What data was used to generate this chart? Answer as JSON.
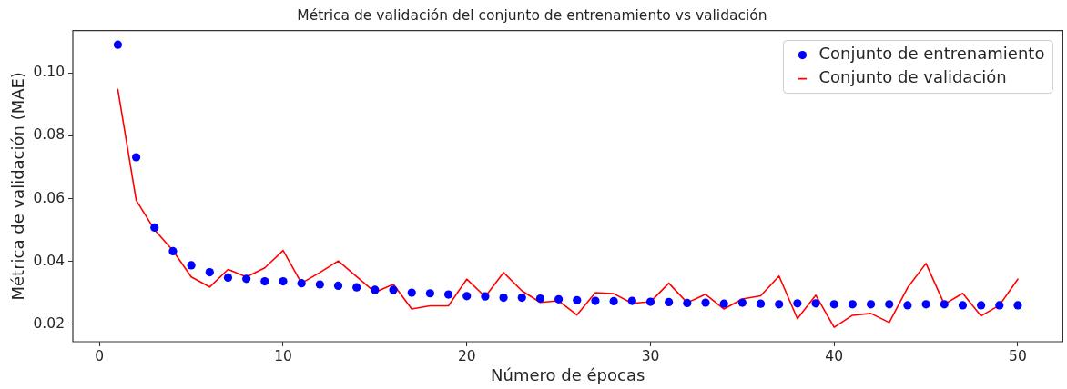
{
  "chart_data": {
    "type": "line",
    "title": "Métrica de validación del conjunto de entrenamiento vs validación",
    "xlabel": "Número de épocas",
    "ylabel": "Métrica de validación (MAE)",
    "x": [
      1,
      2,
      3,
      4,
      5,
      6,
      7,
      8,
      9,
      10,
      11,
      12,
      13,
      14,
      15,
      16,
      17,
      18,
      19,
      20,
      21,
      22,
      23,
      24,
      25,
      26,
      27,
      28,
      29,
      30,
      31,
      32,
      33,
      34,
      35,
      36,
      37,
      38,
      39,
      40,
      41,
      42,
      43,
      44,
      45,
      46,
      47,
      48,
      49,
      50
    ],
    "series": [
      {
        "name": "Conjunto de entrenamiento",
        "type": "scatter",
        "marker": "circle",
        "color": "#0000ff",
        "values": [
          0.109,
          0.0732,
          0.0508,
          0.0433,
          0.0388,
          0.0366,
          0.0349,
          0.0345,
          0.0337,
          0.0337,
          0.0331,
          0.0327,
          0.0323,
          0.0318,
          0.031,
          0.031,
          0.0301,
          0.0299,
          0.0295,
          0.029,
          0.0289,
          0.0285,
          0.0285,
          0.0282,
          0.028,
          0.0277,
          0.0275,
          0.0274,
          0.0275,
          0.0272,
          0.0271,
          0.0268,
          0.0269,
          0.0266,
          0.0269,
          0.0266,
          0.0264,
          0.0267,
          0.0267,
          0.0264,
          0.0264,
          0.0264,
          0.0264,
          0.0261,
          0.0264,
          0.0264,
          0.0261,
          0.0261,
          0.0261,
          0.0261
        ]
      },
      {
        "name": "Conjunto de validación",
        "type": "line",
        "line_style": "solid",
        "color": "#ff0000",
        "values": [
          0.0948,
          0.0595,
          0.0501,
          0.0435,
          0.0351,
          0.0319,
          0.0375,
          0.0351,
          0.038,
          0.0435,
          0.0331,
          0.0365,
          0.0402,
          0.0352,
          0.0302,
          0.0328,
          0.0249,
          0.0259,
          0.0259,
          0.0344,
          0.0288,
          0.0365,
          0.0307,
          0.027,
          0.0275,
          0.023,
          0.0301,
          0.0298,
          0.0267,
          0.0272,
          0.0331,
          0.0269,
          0.0296,
          0.0249,
          0.0281,
          0.0291,
          0.0354,
          0.0218,
          0.0293,
          0.0191,
          0.0229,
          0.0235,
          0.0206,
          0.0317,
          0.0394,
          0.0264,
          0.0299,
          0.0227,
          0.0261,
          0.0344
        ]
      }
    ],
    "xlim": [
      -1.45,
      52.45
    ],
    "xticks": [
      0,
      10,
      20,
      30,
      40,
      50
    ],
    "ylim": [
      0.0145,
      0.1135
    ],
    "yticks": [
      0.02,
      0.04,
      0.06,
      0.08,
      {
        "value": 0.1,
        "label": "0.10"
      }
    ],
    "grid": false,
    "legend": "top right"
  }
}
